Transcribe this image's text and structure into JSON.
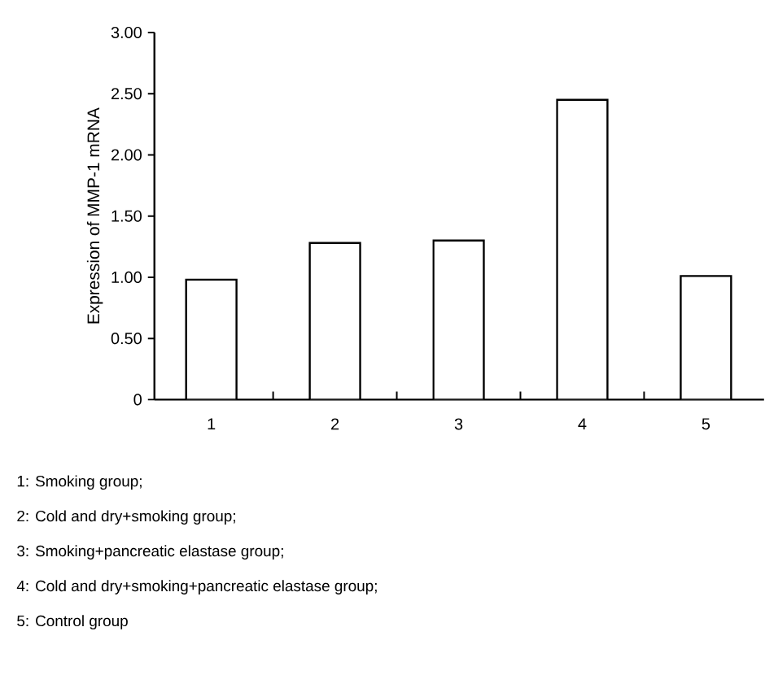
{
  "chart_data": {
    "type": "bar",
    "ylabel": "Expression of MMP-1 mRNA",
    "categories": [
      "1",
      "2",
      "3",
      "4",
      "5"
    ],
    "values": [
      0.98,
      1.28,
      1.3,
      2.45,
      1.01
    ],
    "color": "#ffffff",
    "ylim": [
      0,
      3
    ],
    "yticks": [
      {
        "value": 0,
        "label": "0"
      },
      {
        "value": 0.5,
        "label": "0.50"
      },
      {
        "value": 1,
        "label": "1.00"
      },
      {
        "value": 1.5,
        "label": "1.50"
      },
      {
        "value": 2,
        "label": "2.00"
      },
      {
        "value": 2.5,
        "label": "2.50"
      },
      {
        "value": 3,
        "label": "3.00"
      }
    ],
    "grid": false,
    "annotations": [
      "1: Smoking group;",
      "2: Cold and dry+smoking group;",
      "3: Smoking+pancreatic elastase group;",
      "4: Cold and dry+smoking+pancreatic elastase group;",
      "5: Control group"
    ]
  }
}
